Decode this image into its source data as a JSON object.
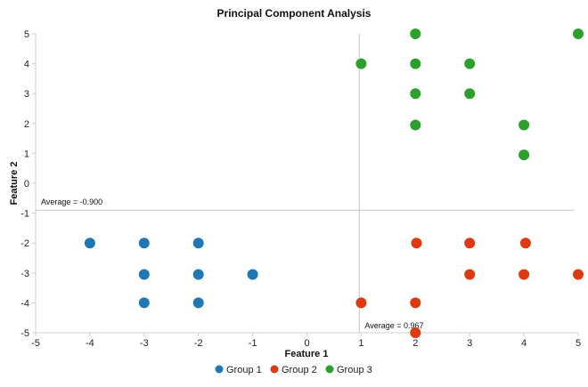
{
  "chart_data": {
    "type": "scatter",
    "title": "Principal Component Analysis",
    "xlabel": "Feature 1",
    "ylabel": "Feature 2",
    "xlim": [
      -5,
      5
    ],
    "ylim": [
      -5,
      5
    ],
    "xticks": [
      -5,
      -4,
      -3,
      -2,
      -1,
      0,
      1,
      2,
      3,
      4,
      5
    ],
    "yticks": [
      5,
      4,
      3,
      2,
      1,
      0,
      -1,
      -2,
      -3,
      -4,
      -5
    ],
    "grid": false,
    "legend": "bottom",
    "series": [
      {
        "name": "Group 1",
        "color": "#1f77b4",
        "points": [
          [
            -4,
            -2
          ],
          [
            -3,
            -2
          ],
          [
            -2,
            -2
          ],
          [
            -3,
            -3.05
          ],
          [
            -2,
            -3.05
          ],
          [
            -1,
            -3.05
          ],
          [
            -3,
            -4
          ],
          [
            -2,
            -4
          ]
        ]
      },
      {
        "name": "Group 2",
        "color": "#dd3a10",
        "points": [
          [
            2.02,
            -2
          ],
          [
            3,
            -2
          ],
          [
            4.03,
            -2
          ],
          [
            3,
            -3.05
          ],
          [
            4,
            -3.05
          ],
          [
            5,
            -3.05
          ],
          [
            1,
            -4
          ],
          [
            2,
            -4
          ],
          [
            2,
            -5
          ]
        ]
      },
      {
        "name": "Group 3",
        "color": "#2ca02c",
        "points": [
          [
            2,
            5
          ],
          [
            5,
            5
          ],
          [
            1,
            4
          ],
          [
            2,
            4
          ],
          [
            3,
            4
          ],
          [
            2,
            3
          ],
          [
            3,
            3
          ],
          [
            2,
            1.95
          ],
          [
            4,
            1.95
          ],
          [
            4,
            0.95
          ]
        ]
      }
    ],
    "reference_lines": [
      {
        "axis": "x",
        "value": 0.967,
        "label": "Average = 0.967"
      },
      {
        "axis": "y",
        "value": -0.9,
        "label": "Average = -0.900"
      }
    ]
  }
}
